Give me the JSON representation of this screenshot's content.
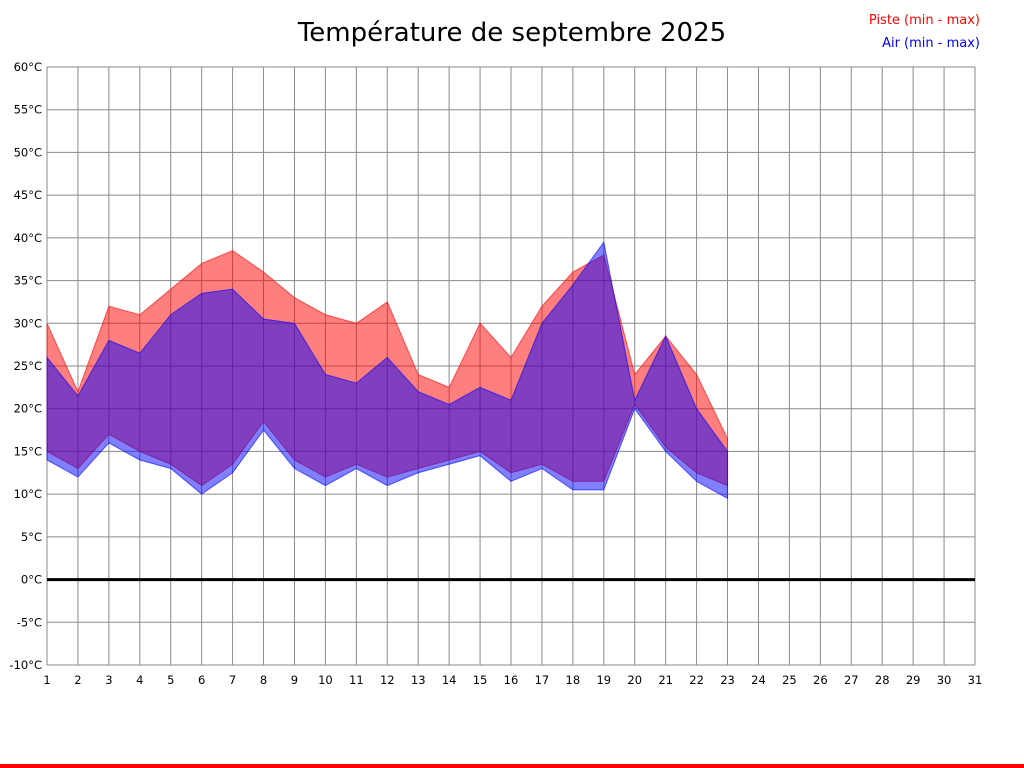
{
  "chart_data": {
    "type": "area",
    "title": "Température de septembre 2025",
    "xlabel": "",
    "ylabel": "",
    "legend_position": "top-right",
    "grid": true,
    "xlim": [
      1,
      31
    ],
    "ylim": [
      -10,
      60
    ],
    "xtick_step": 1,
    "ytick_step": 5,
    "ytick_suffix": "°C",
    "zero_line": 0,
    "legend": [
      {
        "label": "Piste (min - max)",
        "color": "#ff0000"
      },
      {
        "label": "Air (min - max)",
        "color": "#0000ff"
      }
    ],
    "x": [
      1,
      2,
      3,
      4,
      5,
      6,
      7,
      8,
      9,
      10,
      11,
      12,
      13,
      14,
      15,
      16,
      17,
      18,
      19,
      20,
      21,
      22,
      23
    ],
    "series": [
      {
        "name": "piste_max",
        "values": [
          30,
          22,
          32,
          31,
          34,
          37,
          38.5,
          36,
          33,
          31,
          30,
          32.5,
          24,
          22.5,
          30,
          26,
          32,
          36,
          38,
          24,
          28.5,
          24,
          16.5
        ]
      },
      {
        "name": "piste_min",
        "values": [
          15,
          13,
          17,
          15,
          13.5,
          11,
          13.5,
          18.5,
          14,
          12,
          13.5,
          12,
          13,
          14,
          15,
          12.5,
          13.5,
          11.5,
          11.5,
          20.5,
          15.5,
          12.5,
          11
        ]
      },
      {
        "name": "air_max",
        "values": [
          26,
          21.5,
          28,
          26.5,
          31,
          33.5,
          34,
          30.5,
          30,
          24,
          23,
          26,
          22,
          20.5,
          22.5,
          21,
          30,
          34.5,
          39.5,
          21,
          28.5,
          20,
          15
        ]
      },
      {
        "name": "air_min",
        "values": [
          14,
          12,
          16,
          14,
          13,
          10,
          12.5,
          17.5,
          13,
          11,
          13,
          11,
          12.5,
          13.5,
          14.5,
          11.5,
          13,
          10.5,
          10.5,
          20,
          15,
          11.5,
          9.5
        ]
      }
    ],
    "bands": [
      {
        "name": "piste",
        "upper": "piste_max",
        "lower": "piste_min",
        "fill": "#ff0000",
        "opacity": 0.5
      },
      {
        "name": "air",
        "upper": "air_max",
        "lower": "air_min",
        "fill": "#0000ff",
        "opacity": 0.5
      }
    ],
    "grid_color": "#8a8a8a",
    "zero_line_color": "#000000"
  }
}
